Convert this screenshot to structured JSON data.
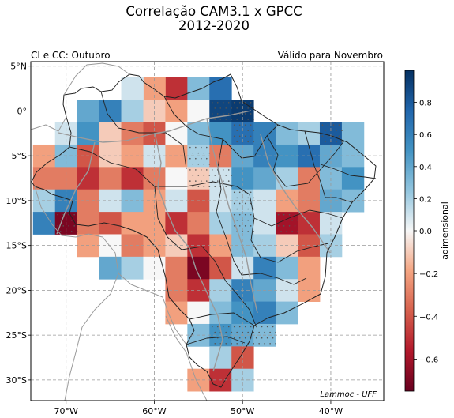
{
  "figure": {
    "title_line1": "Correlação CAM3.1 x GPCC",
    "title_line2": "2012-2020",
    "subtitle_left": "CI e CC: Outubro",
    "subtitle_right": "Válido para Novembro",
    "credit": "Lammoc - UFF"
  },
  "map": {
    "lon_range": [
      -74,
      -34
    ],
    "lat_range": [
      -32.3,
      5.5
    ],
    "lon_ticks": [
      {
        "value": -70,
        "label": "70°W"
      },
      {
        "value": -60,
        "label": "60°W"
      },
      {
        "value": -50,
        "label": "50°W"
      },
      {
        "value": -40,
        "label": "40°W"
      }
    ],
    "lat_ticks": [
      {
        "value": 5,
        "label": "5°N"
      },
      {
        "value": 0,
        "label": "0°"
      },
      {
        "value": -5,
        "label": "5°S"
      },
      {
        "value": -10,
        "label": "10°S"
      },
      {
        "value": -15,
        "label": "15°S"
      },
      {
        "value": -20,
        "label": "20°S"
      },
      {
        "value": -25,
        "label": "25°S"
      },
      {
        "value": -30,
        "label": "30°S"
      }
    ],
    "grid": true,
    "grid_style": "dashed",
    "cell_size_deg": 2.5,
    "colormap": "RdBu",
    "significance_marker": "dots"
  },
  "colorbar": {
    "label": "adimensional",
    "range": [
      -0.75,
      1.0
    ],
    "ticks": [
      {
        "value": 0.8,
        "label": "0.8"
      },
      {
        "value": 0.6,
        "label": "0.6"
      },
      {
        "value": 0.4,
        "label": "0.4"
      },
      {
        "value": 0.2,
        "label": "0.2"
      },
      {
        "value": 0.0,
        "label": "0.0"
      },
      {
        "value": -0.2,
        "label": "−0.2"
      },
      {
        "value": -0.4,
        "label": "−0.4"
      },
      {
        "value": -0.6,
        "label": "−0.6"
      }
    ]
  },
  "chart_data": {
    "type": "heatmap",
    "title": "Correlação CAM3.1 x GPCC 2012-2020",
    "colorbar_label": "adimensional",
    "value_range": [
      -0.75,
      1.0
    ],
    "cells_note": "Correlation per grid cell (lon center, lat center, value, significant)",
    "cells": [
      [
        -57.5,
        2.5,
        -0.5,
        false
      ],
      [
        -60,
        2.5,
        -0.2,
        false
      ],
      [
        -62.5,
        2.5,
        0.1,
        false
      ],
      [
        -55,
        2.5,
        0.3,
        false
      ],
      [
        -52.5,
        2.5,
        0.7,
        false
      ],
      [
        -67.5,
        0,
        0.4,
        false
      ],
      [
        -65,
        0,
        0.6,
        false
      ],
      [
        -62.5,
        0,
        0.2,
        false
      ],
      [
        -60,
        0,
        -0.1,
        false
      ],
      [
        -57.5,
        0,
        -0.2,
        false
      ],
      [
        -55,
        0,
        0.0,
        false
      ],
      [
        -52.5,
        0,
        0.9,
        true
      ],
      [
        -50,
        0,
        0.95,
        true
      ],
      [
        -70,
        -2.5,
        0.1,
        false
      ],
      [
        -67.5,
        -2.5,
        0.5,
        false
      ],
      [
        -65,
        -2.5,
        -0.1,
        false
      ],
      [
        -62.5,
        -2.5,
        -0.3,
        false
      ],
      [
        -60,
        -2.5,
        -0.4,
        false
      ],
      [
        -57.5,
        -2.5,
        0.0,
        false
      ],
      [
        -55,
        -2.5,
        0.3,
        false
      ],
      [
        -52.5,
        -2.5,
        0.5,
        false
      ],
      [
        -50,
        -2.5,
        0.7,
        true
      ],
      [
        -47.5,
        -2.5,
        0.6,
        false
      ],
      [
        -45,
        -2.5,
        0.3,
        false
      ],
      [
        -42.5,
        -2.5,
        0.2,
        false
      ],
      [
        -40,
        -2.5,
        0.8,
        true
      ],
      [
        -37.5,
        -2.5,
        0.3,
        false
      ],
      [
        -72.5,
        -5,
        -0.2,
        false
      ],
      [
        -70,
        -5,
        0.3,
        false
      ],
      [
        -67.5,
        -5,
        -0.4,
        false
      ],
      [
        -65,
        -5,
        -0.1,
        false
      ],
      [
        -62.5,
        -5,
        -0.2,
        false
      ],
      [
        -60,
        -5,
        0.1,
        false
      ],
      [
        -57.5,
        -5,
        -0.2,
        false
      ],
      [
        -55,
        -5,
        0.2,
        true
      ],
      [
        -52.5,
        -5,
        -0.3,
        false
      ],
      [
        -50,
        -5,
        0.4,
        false
      ],
      [
        -47.5,
        -5,
        0.6,
        false
      ],
      [
        -45,
        -5,
        0.5,
        false
      ],
      [
        -42.5,
        -5,
        0.7,
        false
      ],
      [
        -40,
        -5,
        0.4,
        false
      ],
      [
        -37.5,
        -5,
        0.3,
        false
      ],
      [
        -72.5,
        -7.5,
        -0.3,
        false
      ],
      [
        -70,
        -7.5,
        -0.3,
        false
      ],
      [
        -67.5,
        -7.5,
        -0.5,
        false
      ],
      [
        -65,
        -7.5,
        -0.3,
        false
      ],
      [
        -62.5,
        -7.5,
        -0.5,
        false
      ],
      [
        -60,
        -7.5,
        -0.3,
        false
      ],
      [
        -57.5,
        -7.5,
        0.0,
        false
      ],
      [
        -55,
        -7.5,
        -0.1,
        true
      ],
      [
        -52.5,
        -7.5,
        0.1,
        true
      ],
      [
        -50,
        -7.5,
        0.5,
        false
      ],
      [
        -47.5,
        -7.5,
        0.4,
        false
      ],
      [
        -45,
        -7.5,
        0.2,
        false
      ],
      [
        -42.5,
        -7.5,
        -0.3,
        false
      ],
      [
        -40,
        -7.5,
        0.3,
        false
      ],
      [
        -37.5,
        -7.5,
        0.5,
        false
      ],
      [
        -72.5,
        -10,
        0.2,
        false
      ],
      [
        -70,
        -10,
        0.6,
        false
      ],
      [
        -67.5,
        -10,
        -0.3,
        false
      ],
      [
        -65,
        -10,
        0.1,
        false
      ],
      [
        -62.5,
        -10,
        0.3,
        false
      ],
      [
        -60,
        -10,
        -0.2,
        false
      ],
      [
        -57.5,
        -10,
        0.1,
        false
      ],
      [
        -55,
        -10,
        -0.4,
        false
      ],
      [
        -52.5,
        -10,
        0.1,
        false
      ],
      [
        -50,
        -10,
        0.2,
        true
      ],
      [
        -47.5,
        -10,
        0.1,
        false
      ],
      [
        -45,
        -10,
        -0.2,
        false
      ],
      [
        -42.5,
        -10,
        -0.3,
        false
      ],
      [
        -40,
        -10,
        0.4,
        false
      ],
      [
        -37.5,
        -10,
        0.3,
        false
      ],
      [
        -72.5,
        -12.5,
        0.6,
        false
      ],
      [
        -70,
        -12.5,
        -0.7,
        true
      ],
      [
        -67.5,
        -12.5,
        -0.3,
        false
      ],
      [
        -65,
        -12.5,
        -0.4,
        false
      ],
      [
        -62.5,
        -12.5,
        -0.2,
        false
      ],
      [
        -60,
        -12.5,
        -0.2,
        false
      ],
      [
        -57.5,
        -12.5,
        -0.5,
        false
      ],
      [
        -55,
        -12.5,
        -0.3,
        false
      ],
      [
        -52.5,
        -12.5,
        0.2,
        false
      ],
      [
        -50,
        -12.5,
        0.3,
        true
      ],
      [
        -47.5,
        -12.5,
        0.1,
        false
      ],
      [
        -45,
        -12.5,
        -0.6,
        true
      ],
      [
        -42.5,
        -12.5,
        -0.5,
        false
      ],
      [
        -40,
        -12.5,
        0.1,
        false
      ],
      [
        -67.5,
        -15,
        -0.2,
        false
      ],
      [
        -65,
        -15,
        0.0,
        false
      ],
      [
        -62.5,
        -15,
        -0.3,
        false
      ],
      [
        -60,
        -15,
        -0.2,
        false
      ],
      [
        -57.5,
        -15,
        -0.1,
        false
      ],
      [
        -55,
        -15,
        -0.5,
        false
      ],
      [
        -52.5,
        -15,
        -0.2,
        false
      ],
      [
        -50,
        -15,
        0.3,
        false
      ],
      [
        -47.5,
        -15,
        0.2,
        false
      ],
      [
        -45,
        -15,
        -0.1,
        false
      ],
      [
        -42.5,
        -15,
        -0.4,
        false
      ],
      [
        -40,
        -15,
        0.2,
        false
      ],
      [
        -65,
        -17.5,
        0.4,
        false
      ],
      [
        -62.5,
        -17.5,
        0.2,
        false
      ],
      [
        -60,
        -17.5,
        0.0,
        false
      ],
      [
        -57.5,
        -17.5,
        -0.3,
        false
      ],
      [
        -55,
        -17.5,
        -0.7,
        false
      ],
      [
        -52.5,
        -17.5,
        -0.4,
        false
      ],
      [
        -50,
        -17.5,
        0.1,
        false
      ],
      [
        -47.5,
        -17.5,
        0.6,
        false
      ],
      [
        -45,
        -17.5,
        0.3,
        false
      ],
      [
        -42.5,
        -17.5,
        -0.2,
        false
      ],
      [
        -57.5,
        -20,
        -0.3,
        false
      ],
      [
        -55,
        -20,
        -0.5,
        false
      ],
      [
        -52.5,
        -20,
        0.2,
        false
      ],
      [
        -50,
        -20,
        0.6,
        false
      ],
      [
        -47.5,
        -20,
        0.4,
        false
      ],
      [
        -45,
        -20,
        0.1,
        false
      ],
      [
        -42.5,
        -20,
        -0.2,
        false
      ],
      [
        -57.5,
        -22.5,
        -0.2,
        false
      ],
      [
        -55,
        -22.5,
        0.0,
        false
      ],
      [
        -52.5,
        -22.5,
        0.3,
        false
      ],
      [
        -50,
        -22.5,
        0.5,
        false
      ],
      [
        -47.5,
        -22.5,
        0.6,
        false
      ],
      [
        -45,
        -22.5,
        0.3,
        false
      ],
      [
        -55,
        -25,
        0.3,
        false
      ],
      [
        -52.5,
        -25,
        0.5,
        true
      ],
      [
        -50,
        -25,
        0.4,
        true
      ],
      [
        -47.5,
        -25,
        0.3,
        true
      ],
      [
        -52.5,
        -27.5,
        0.2,
        false
      ],
      [
        -50,
        -27.5,
        -0.4,
        false
      ],
      [
        -55,
        -30,
        -0.2,
        false
      ],
      [
        -52.5,
        -30,
        -0.5,
        false
      ],
      [
        -50,
        -30,
        0.2,
        false
      ]
    ]
  }
}
